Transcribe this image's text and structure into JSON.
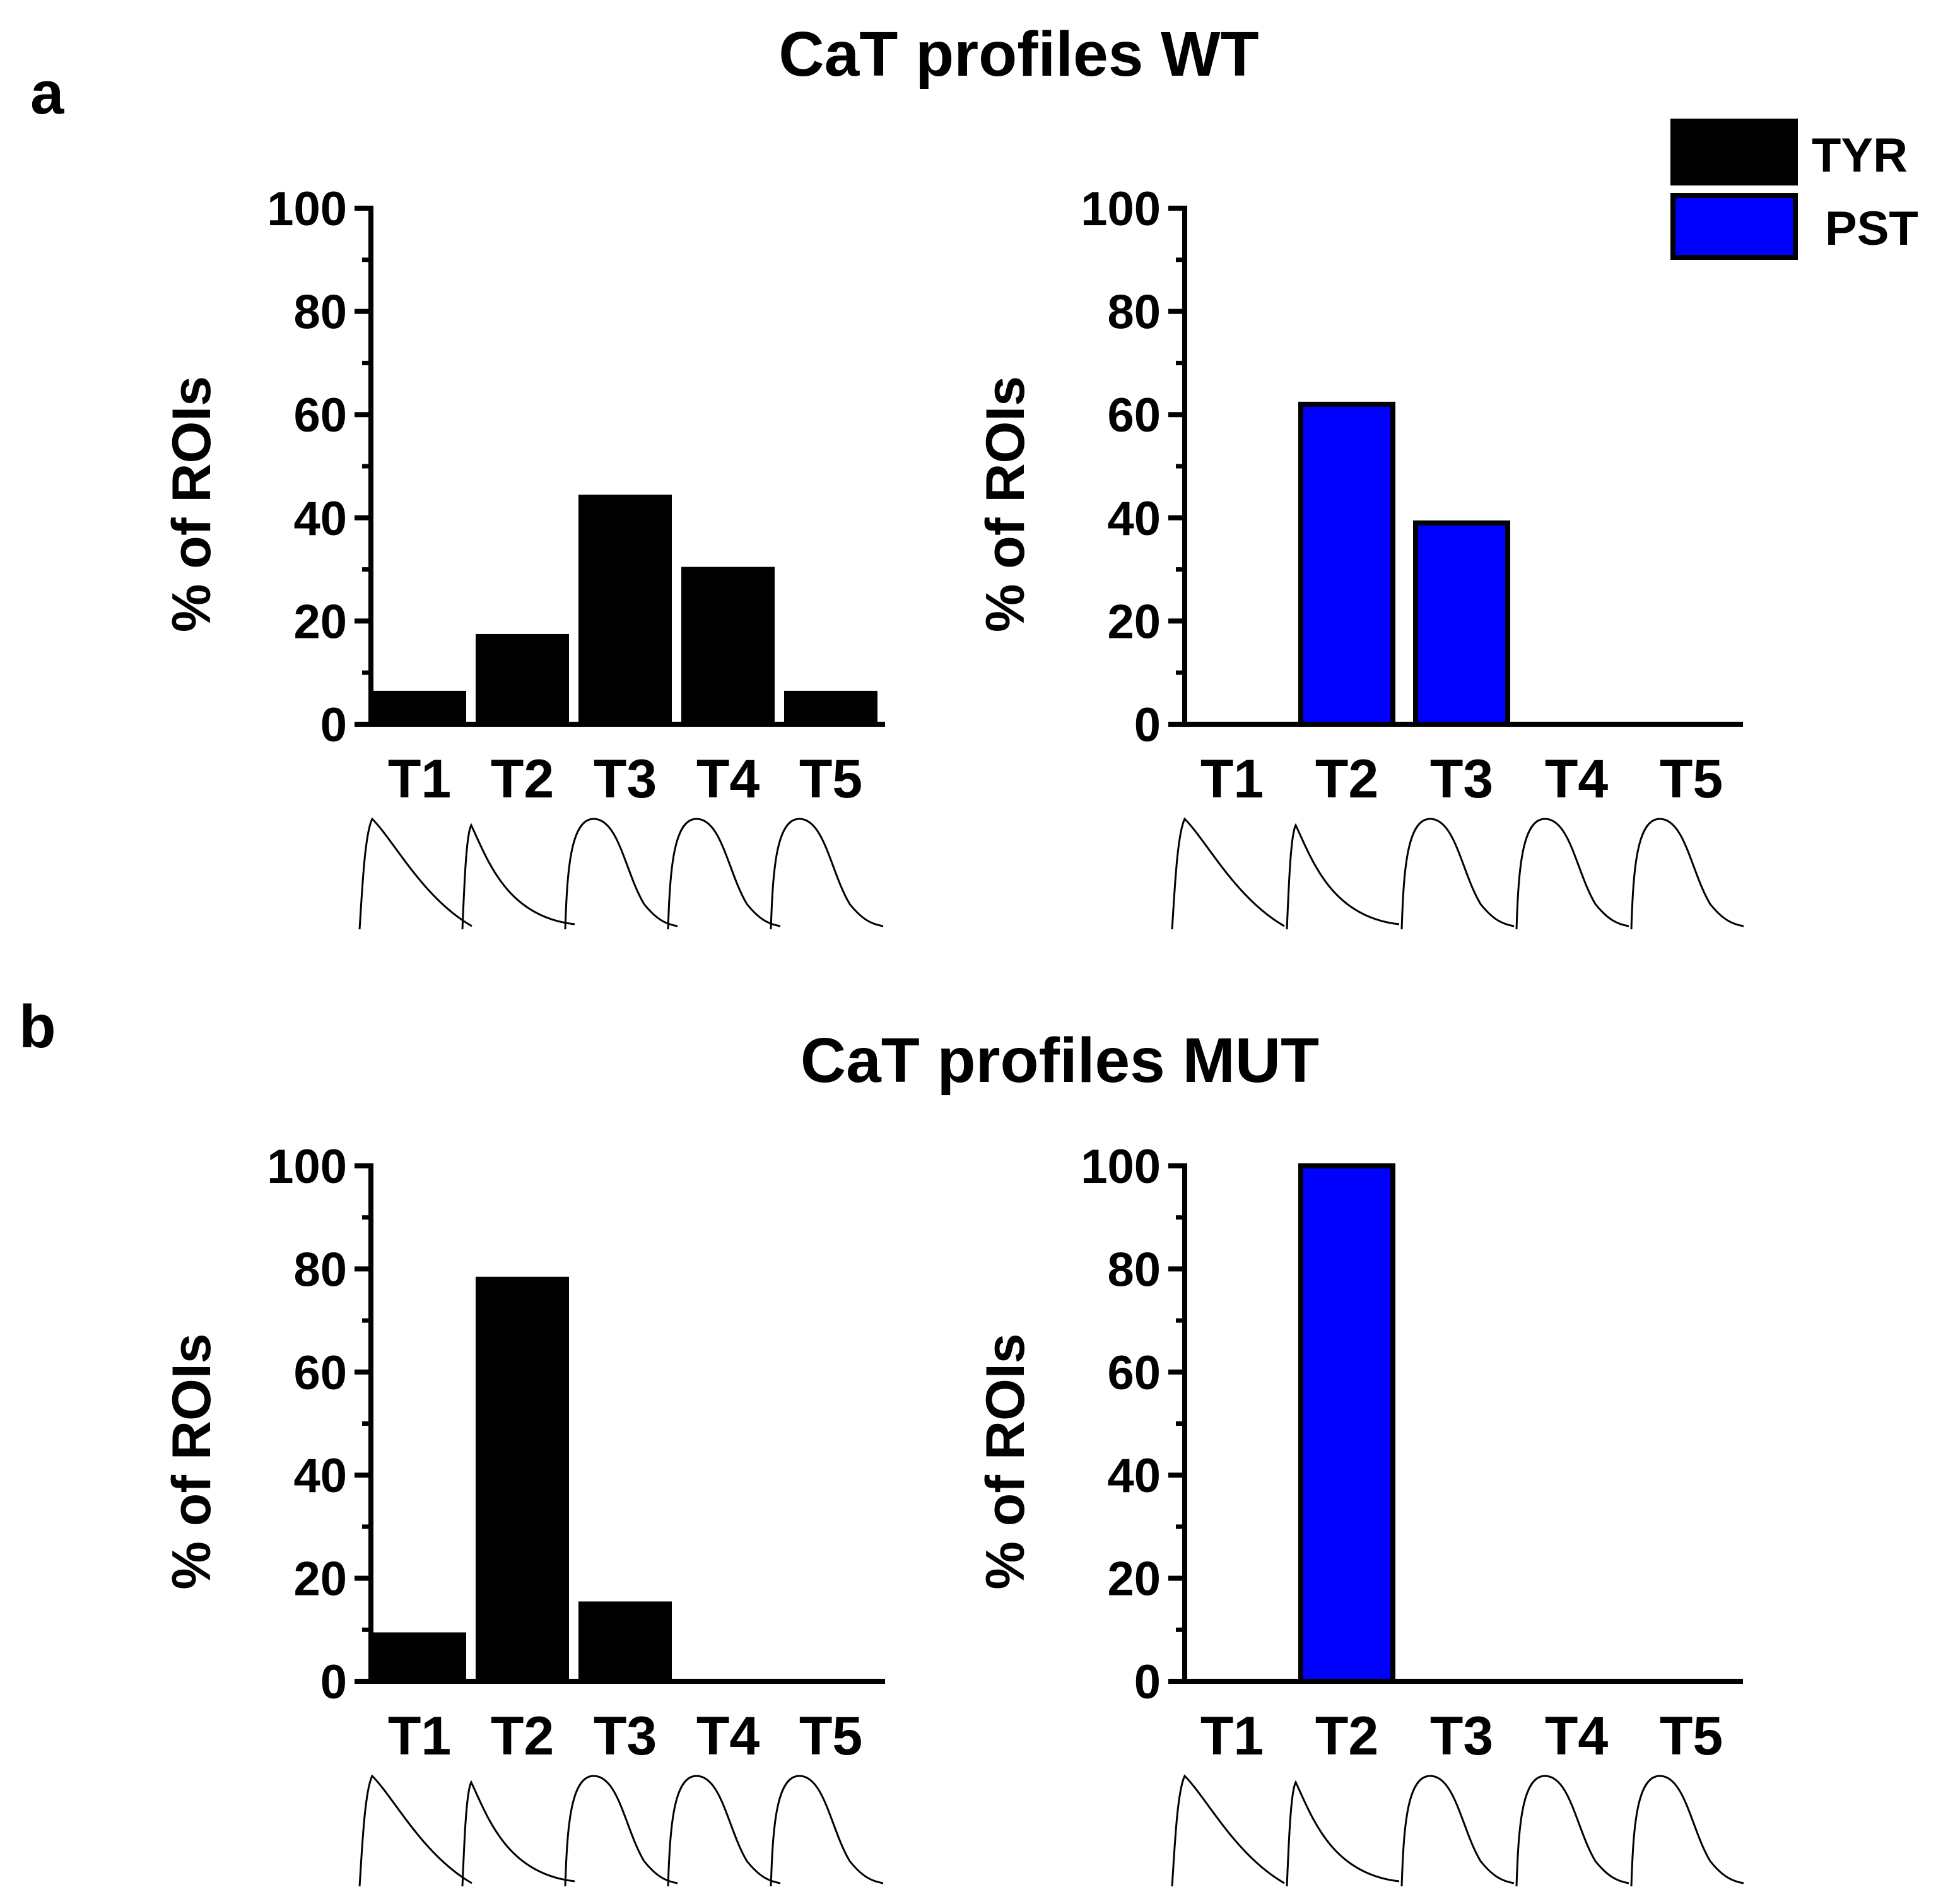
{
  "figure": {
    "panels": [
      {
        "letter": "a",
        "title": "CaT profiles WT"
      },
      {
        "letter": "b",
        "title": "CaT profiles MUT"
      }
    ],
    "legend": {
      "entries": [
        {
          "label": "TYR",
          "color": "#000000"
        },
        {
          "label": "PST",
          "color": "#0000ff"
        }
      ]
    }
  },
  "chart_data": [
    {
      "id": "wt-tyr",
      "type": "bar",
      "panel": "a",
      "series": "TYR",
      "color": "#000000",
      "categories": [
        "T1",
        "T2",
        "T3",
        "T4",
        "T5"
      ],
      "values": [
        6,
        17,
        44,
        30,
        6
      ],
      "ylabel": "% of ROIs",
      "ylim": [
        0,
        100
      ],
      "yticks": [
        "0",
        "20",
        "40",
        "60",
        "80",
        "100"
      ]
    },
    {
      "id": "wt-pst",
      "type": "bar",
      "panel": "a",
      "series": "PST",
      "color": "#0000ff",
      "categories": [
        "T1",
        "T2",
        "T3",
        "T4",
        "T5"
      ],
      "values": [
        0,
        62,
        39,
        0,
        0
      ],
      "ylabel": "% of ROIs",
      "ylim": [
        0,
        100
      ],
      "yticks": [
        "0",
        "20",
        "40",
        "60",
        "80",
        "100"
      ]
    },
    {
      "id": "mut-tyr",
      "type": "bar",
      "panel": "b",
      "series": "TYR",
      "color": "#000000",
      "categories": [
        "T1",
        "T2",
        "T3",
        "T4",
        "T5"
      ],
      "values": [
        9,
        78,
        15,
        0,
        0
      ],
      "ylabel": "% of ROIs",
      "ylim": [
        0,
        100
      ],
      "yticks": [
        "0",
        "20",
        "40",
        "60",
        "80",
        "100"
      ]
    },
    {
      "id": "mut-pst",
      "type": "bar",
      "panel": "b",
      "series": "PST",
      "color": "#0000ff",
      "categories": [
        "T1",
        "T2",
        "T3",
        "T4",
        "T5"
      ],
      "values": [
        0,
        100,
        0,
        0,
        0
      ],
      "ylabel": "% of ROIs",
      "ylim": [
        0,
        100
      ],
      "yticks": [
        "0",
        "20",
        "40",
        "60",
        "80",
        "100"
      ]
    }
  ]
}
